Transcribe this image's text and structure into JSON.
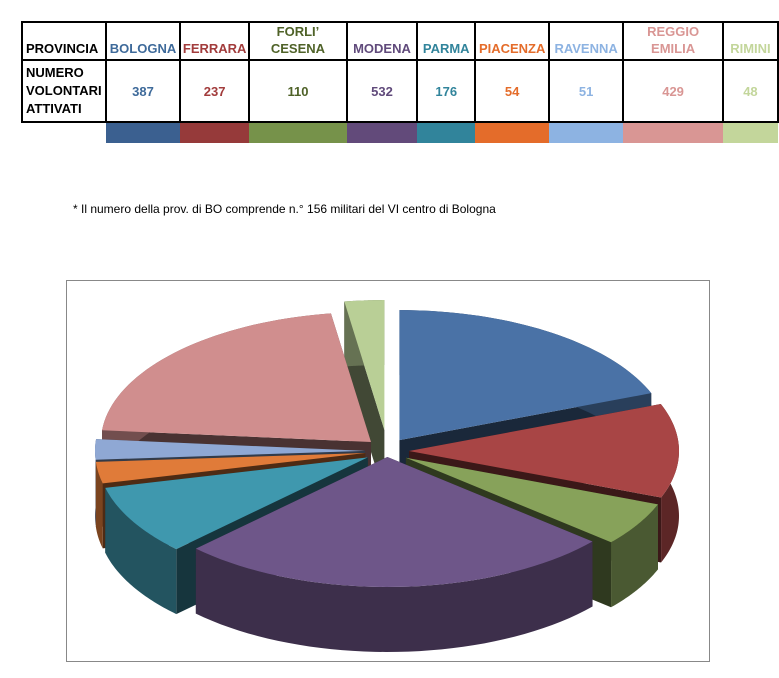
{
  "table": {
    "row_header": "PROVINCIA",
    "value_header": "NUMERO VOLONTARI ATTIVATI",
    "value_header_lines": [
      "NUMERO",
      "VOLONTARI",
      "ATTIVATI"
    ],
    "columns": [
      {
        "name": "BOLOGNA",
        "lines": [
          "BOLOGNA"
        ],
        "value": "387",
        "color": "#3B6090"
      },
      {
        "name": "FERRARA",
        "lines": [
          "FERRARA"
        ],
        "value": "237",
        "color": "#963A3A"
      },
      {
        "name": "FORLI' CESENA",
        "lines": [
          "FORLI’",
          "CESENA"
        ],
        "value": "110",
        "color": "#76924A"
      },
      {
        "name": "MODENA",
        "lines": [
          "MODENA"
        ],
        "value": "532",
        "color": "#624A7A"
      },
      {
        "name": "PARMA",
        "lines": [
          "PARMA"
        ],
        "value": "176",
        "color": "#31849B"
      },
      {
        "name": "PIACENZA",
        "lines": [
          "PIACENZA"
        ],
        "value": "54",
        "color": "#E46C2A"
      },
      {
        "name": "RAVENNA",
        "lines": [
          "RAVENNA"
        ],
        "value": "51",
        "color": "#8DB3E2"
      },
      {
        "name": "REGGIO EMILIA",
        "lines": [
          "REGGIO",
          "EMILIA"
        ],
        "value": "429",
        "color": "#D99694"
      },
      {
        "name": "RIMINI",
        "lines": [
          "RIMINI"
        ],
        "value": "48",
        "color": "#C3D69B"
      }
    ],
    "text_colors": [
      "#3E6A9A",
      "#A23C3C",
      "#4F6228",
      "#604A7B",
      "#31849B",
      "#E46C2A",
      "#8DB3E2",
      "#D99694",
      "#C3D69B"
    ]
  },
  "note": "* Il numero della prov. di BO comprende n.° 156 militari del  VI centro di Bologna",
  "chart_data": {
    "type": "pie",
    "title": "",
    "style": "3D exploded pie",
    "categories": [
      "BOLOGNA",
      "FERRARA",
      "FORLI' CESENA",
      "MODENA",
      "PARMA",
      "PIACENZA",
      "RAVENNA",
      "REGGIO EMILIA",
      "RIMINI"
    ],
    "values": [
      387,
      237,
      110,
      532,
      176,
      54,
      51,
      429,
      48
    ],
    "colors": [
      "#4A72A6",
      "#A84545",
      "#87A25A",
      "#6E5689",
      "#3F98AE",
      "#E07B39",
      "#8FA8D4",
      "#D08E8E",
      "#B9CF96"
    ],
    "legend": "none"
  }
}
